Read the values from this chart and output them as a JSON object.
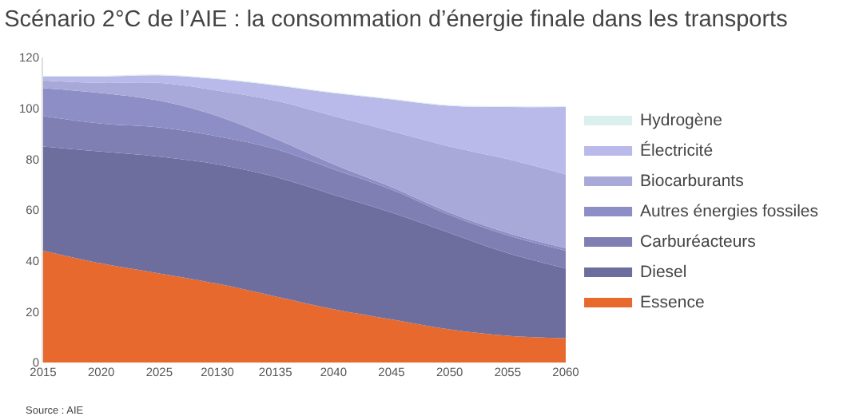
{
  "chart_data": {
    "type": "area",
    "stacked": true,
    "title": "Scénario 2°C de l’AIE : la consommation d’énergie finale dans les transports",
    "categories": [
      "2015",
      "2020",
      "2025",
      "20130",
      "20135",
      "2040",
      "2045",
      "2050",
      "2055",
      "2060"
    ],
    "series": [
      {
        "name": "Essence",
        "color": "#e8692e",
        "values": [
          44,
          39,
          35,
          31,
          26,
          21,
          17,
          13,
          10.5,
          9.5
        ]
      },
      {
        "name": "Diesel",
        "color": "#6e6e9e",
        "values": [
          41,
          44,
          46,
          47,
          47,
          45,
          42,
          38,
          32.5,
          27.5
        ]
      },
      {
        "name": "Carburéacteurs",
        "color": "#7f7fb4",
        "values": [
          12,
          11,
          11.5,
          11,
          11,
          10,
          9,
          7,
          7,
          7
        ]
      },
      {
        "name": "Autres énergies fossiles",
        "color": "#8e8ec6",
        "values": [
          11,
          12,
          10.5,
          8,
          4,
          2,
          1,
          1,
          1,
          1
        ]
      },
      {
        "name": "Biocarburants",
        "color": "#a9a9d9",
        "values": [
          3,
          4,
          7,
          10,
          15,
          19,
          22,
          26,
          29,
          29
        ]
      },
      {
        "name": "Électricité",
        "color": "#b9b9ea",
        "values": [
          1.5,
          2.5,
          3,
          4.5,
          6,
          9,
          12.5,
          16,
          20.5,
          26.5
        ]
      },
      {
        "name": "Hydrogène",
        "color": "#dcefef",
        "values": [
          0.3,
          0.3,
          0.3,
          0.3,
          0.3,
          0.3,
          0.3,
          0.3,
          0.3,
          0.3
        ]
      }
    ],
    "ylim": [
      0,
      120
    ],
    "yticks": [
      0,
      20,
      40,
      60,
      80,
      100,
      120
    ],
    "legend": "right",
    "annotations": [
      "Source : AIE"
    ]
  }
}
